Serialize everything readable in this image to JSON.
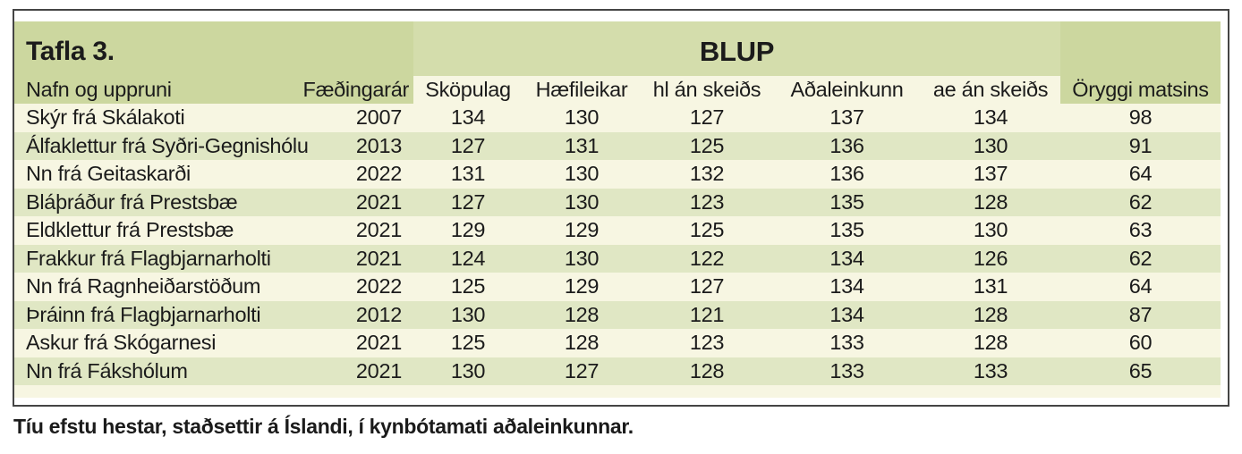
{
  "table": {
    "title": "Tafla 3.",
    "group_header": "BLUP",
    "columns": [
      "Nafn og uppruni",
      "Fæðingarár",
      "Sköpulag",
      "Hæfileikar",
      "hl án skeiðs",
      "Aðaleinkunn",
      "ae án skeiðs",
      "Öryggi matsins"
    ],
    "rows": [
      {
        "name": "Skýr frá Skálakoti",
        "year": "2007",
        "values": [
          134,
          130,
          127,
          137,
          134,
          98
        ]
      },
      {
        "name": "Álfaklettur frá Syðri-Gegnishólum",
        "year": "2013",
        "values": [
          127,
          131,
          125,
          136,
          130,
          91
        ]
      },
      {
        "name": "Nn frá Geitaskarði",
        "year": "2022",
        "values": [
          131,
          130,
          132,
          136,
          137,
          64
        ]
      },
      {
        "name": "Bláþráður frá Prestsbæ",
        "year": "2021",
        "values": [
          127,
          130,
          123,
          135,
          128,
          62
        ]
      },
      {
        "name": "Eldklettur frá Prestsbæ",
        "year": "2021",
        "values": [
          129,
          129,
          125,
          135,
          130,
          63
        ]
      },
      {
        "name": "Frakkur frá Flagbjarnarholti",
        "year": "2021",
        "values": [
          124,
          130,
          122,
          134,
          126,
          62
        ]
      },
      {
        "name": "Nn frá Ragnheiðarstöðum",
        "year": "2022",
        "values": [
          125,
          129,
          127,
          134,
          131,
          64
        ]
      },
      {
        "name": "Þráinn frá Flagbjarnarholti",
        "year": "2012",
        "values": [
          130,
          128,
          121,
          134,
          128,
          87
        ]
      },
      {
        "name": "Askur frá Skógarnesi",
        "year": "2021",
        "values": [
          125,
          128,
          123,
          133,
          128,
          60
        ]
      },
      {
        "name": "Nn frá Fákshólum",
        "year": "2021",
        "values": [
          130,
          127,
          128,
          133,
          133,
          65
        ]
      }
    ]
  },
  "caption": "Tíu efstu hestar, staðsettir á Íslandi, í kynbótamati aðaleinkunnar.",
  "colors": {
    "header_green": "#ccd79f",
    "blup_band_green": "#d4ddac",
    "row_green": "#e0e7c4",
    "row_cream": "#f7f6e2",
    "border": "#454545",
    "text": "#1b1b1b"
  }
}
